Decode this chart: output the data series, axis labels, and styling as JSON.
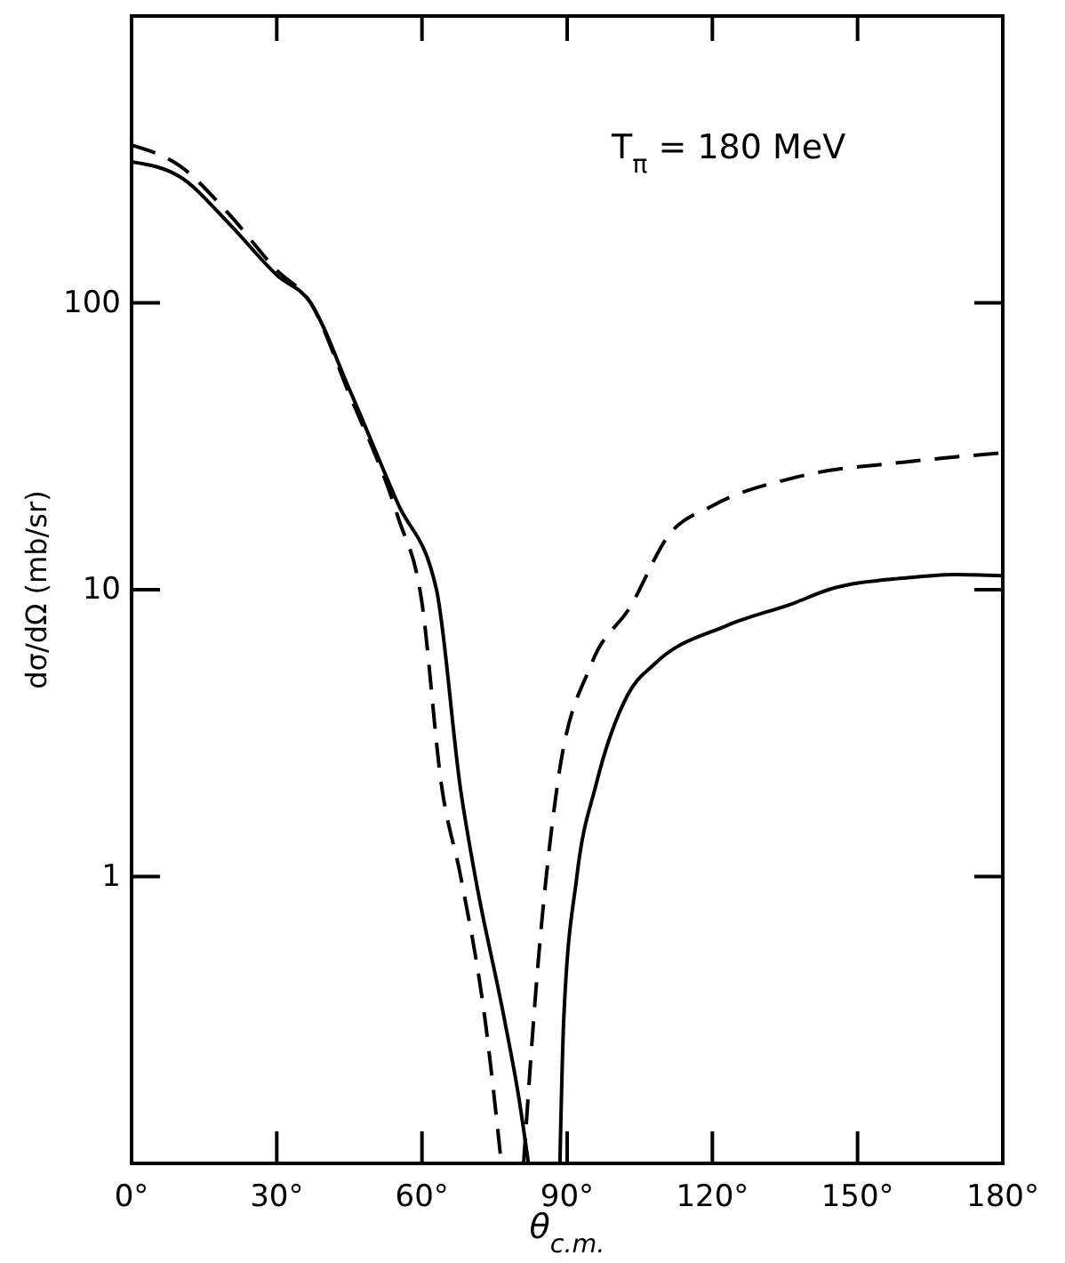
{
  "chart_data": {
    "type": "line",
    "xlabel": "θ$_{c.m.}$",
    "ylabel": "dσ/dΩ  (mb/sr)",
    "annotations": [
      "T$_{π}$  = 180 MeV"
    ],
    "log": "y",
    "xlim": [
      0,
      180
    ],
    "ylim": [
      0.1,
      1000
    ],
    "xticks": [
      {
        "value": 0,
        "label": "0°"
      },
      {
        "value": 30,
        "label": "30°"
      },
      {
        "value": 60,
        "label": "60°"
      },
      {
        "value": 90,
        "label": "90°"
      },
      {
        "value": 120,
        "label": "120°"
      },
      {
        "value": 150,
        "label": "150°"
      },
      {
        "value": 180,
        "label": "180°"
      }
    ],
    "yticks": [
      1,
      10,
      100
    ],
    "grid": false,
    "series": [
      {
        "color": "#000000",
        "line_style": "solid",
        "x": [
          0,
          10,
          20,
          30,
          37,
          45,
          55,
          63,
          68,
          71,
          77,
          80,
          82
        ],
        "values": [
          310,
          275,
          190,
          125,
          100,
          50,
          20,
          10,
          2,
          1,
          0.32,
          0.17,
          0.1
        ]
      },
      {
        "color": "#000000",
        "line_style": "solid",
        "x": [
          88.5,
          89.3,
          92,
          96,
          102.5,
          108,
          123,
          137,
          144,
          160,
          170,
          180
        ],
        "values": [
          0.1,
          0.32,
          1,
          2.1,
          4.3,
          5.5,
          7.5,
          9,
          10,
          11,
          11.3,
          11.2
        ]
      },
      {
        "color": "#000000",
        "line_style": "dashed",
        "x": [
          0,
          10,
          20,
          30,
          37,
          45,
          55,
          60,
          64,
          68,
          73,
          76.4
        ],
        "values": [
          355,
          300,
          205,
          130,
          100,
          48,
          18,
          9,
          2.1,
          1,
          0.32,
          0.1
        ]
      },
      {
        "color": "#000000",
        "line_style": "dashed",
        "x": [
          81,
          84,
          88,
          95,
          103,
          111,
          120,
          137,
          161,
          180
        ],
        "values": [
          0.1,
          0.5,
          2.1,
          5.5,
          8.7,
          15.5,
          19.6,
          24.6,
          28,
          30
        ]
      }
    ]
  }
}
